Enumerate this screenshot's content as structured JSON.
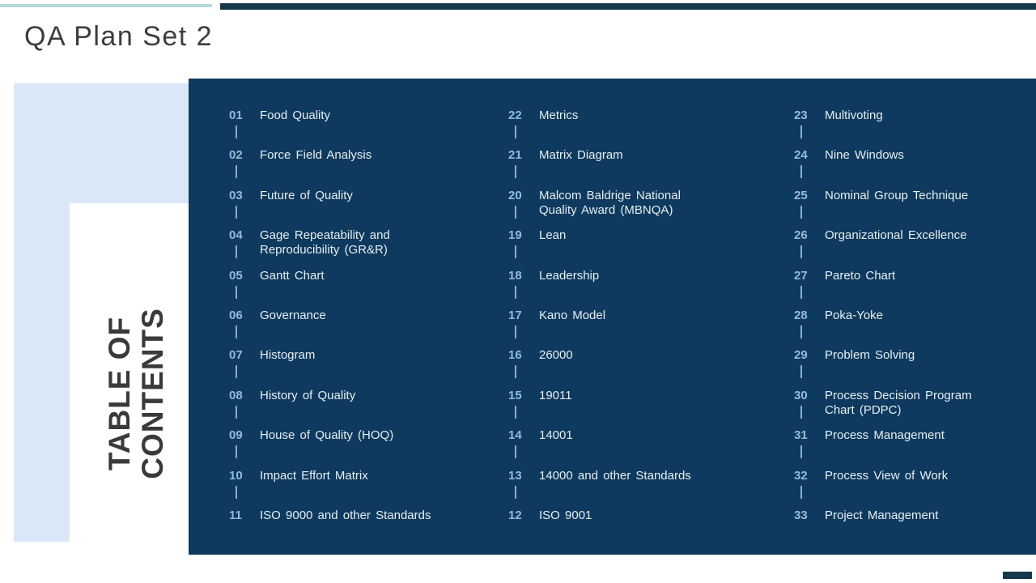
{
  "header": {
    "title": "QA Plan Set 2"
  },
  "sidebar": {
    "title_line1": "TABLE OF",
    "title_line2": "CONTENTS"
  },
  "toc": {
    "columns": [
      {
        "items": [
          {
            "num": "01",
            "label": "Food Quality"
          },
          {
            "num": "02",
            "label": "Force Field Analysis"
          },
          {
            "num": "03",
            "label": "Future of Quality"
          },
          {
            "num": "04",
            "label": "Gage Repeatability and\nReproducibility (GR&R)"
          },
          {
            "num": "05",
            "label": "Gantt Chart"
          },
          {
            "num": "06",
            "label": "Governance"
          },
          {
            "num": "07",
            "label": "Histogram"
          },
          {
            "num": "08",
            "label": "History of Quality"
          },
          {
            "num": "09",
            "label": "House of Quality (HOQ)"
          },
          {
            "num": "10",
            "label": "Impact Effort Matrix"
          },
          {
            "num": "11",
            "label": "ISO 9000 and other Standards"
          }
        ]
      },
      {
        "items": [
          {
            "num": "22",
            "label": "Metrics"
          },
          {
            "num": "21",
            "label": "Matrix Diagram"
          },
          {
            "num": "20",
            "label": "Malcom Baldrige National\nQuality Award (MBNQA)"
          },
          {
            "num": "19",
            "label": "Lean"
          },
          {
            "num": "18",
            "label": "Leadership"
          },
          {
            "num": "17",
            "label": "Kano Model"
          },
          {
            "num": "16",
            "label": "26000"
          },
          {
            "num": "15",
            "label": "19011"
          },
          {
            "num": "14",
            "label": "14001"
          },
          {
            "num": "13",
            "label": "14000 and other Standards"
          },
          {
            "num": "12",
            "label": "ISO 9001"
          }
        ]
      },
      {
        "items": [
          {
            "num": "23",
            "label": "Multivoting"
          },
          {
            "num": "24",
            "label": "Nine Windows"
          },
          {
            "num": "25",
            "label": "Nominal Group Technique"
          },
          {
            "num": "26",
            "label": "Organizational Excellence"
          },
          {
            "num": "27",
            "label": "Pareto Chart"
          },
          {
            "num": "28",
            "label": "Poka-Yoke"
          },
          {
            "num": "29",
            "label": "Problem Solving"
          },
          {
            "num": "30",
            "label": "Process Decision Program\nChart (PDPC)"
          },
          {
            "num": "31",
            "label": "Process Management"
          },
          {
            "num": "32",
            "label": "Process View of Work"
          },
          {
            "num": "33",
            "label": "Project Management"
          }
        ]
      }
    ]
  },
  "colors": {
    "panel_navy": "#0d3a5e",
    "top_bar_navy": "#16384c",
    "top_bar_teal": "#b7d8da",
    "light_blue_block": "#d9e7f9",
    "number_blue": "#96bbdc",
    "label_white": "#e9edf0",
    "heading_gray": "#3d3d3d"
  }
}
